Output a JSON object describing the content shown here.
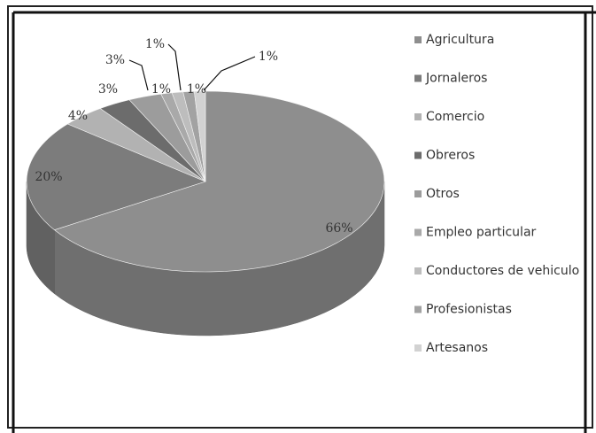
{
  "chart_data": {
    "type": "pie3d",
    "categories": [
      "Agricultura",
      "Jornaleros",
      "Comercio",
      "Obreros",
      "Otros",
      "Empleo particular",
      "Conductores de vehiculo",
      "Profesionistas",
      "Artesanos"
    ],
    "values": [
      66,
      20,
      4,
      3,
      3,
      1,
      1,
      1,
      1
    ],
    "value_labels": [
      "66%",
      "20%",
      "4%",
      "3%",
      "3%",
      "1%",
      "1%",
      "1%",
      "1%"
    ],
    "colors": [
      "#8e8e8e",
      "#7c7c7c",
      "#b2b2b2",
      "#6c6c6c",
      "#9c9c9c",
      "#a9a9a9",
      "#bdbdbd",
      "#a2a2a2",
      "#d2d2d2"
    ],
    "legend": "right"
  }
}
